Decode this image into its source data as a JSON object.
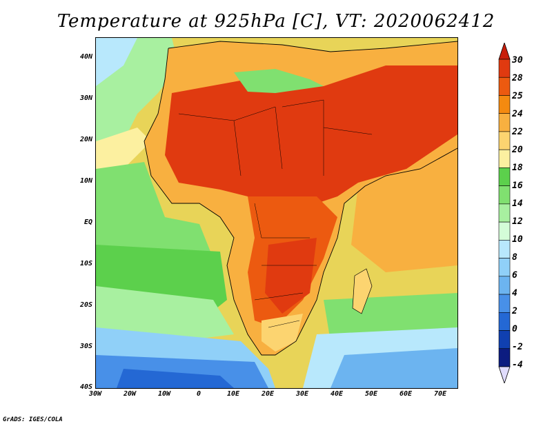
{
  "title": "Temperature at 925hPa [C], VT: 2020062412",
  "footer": "GrADS: IGES/COLA",
  "map": {
    "lat_labels": [
      "40N",
      "30N",
      "20N",
      "10N",
      "EQ",
      "10S",
      "20S",
      "30S",
      "40S"
    ],
    "lon_labels": [
      "30W",
      "20W",
      "10W",
      "0",
      "10E",
      "20E",
      "30E",
      "40E",
      "50E",
      "60E",
      "70E"
    ]
  },
  "colorbar": {
    "labels": [
      "30",
      "28",
      "25",
      "24",
      "22",
      "20",
      "18",
      "16",
      "14",
      "12",
      "10",
      "8",
      "6",
      "4",
      "2",
      "0",
      "-2",
      "-4"
    ],
    "colors": [
      "#e03a10",
      "#ec5a10",
      "#f48a10",
      "#f8b040",
      "#fcd470",
      "#fcf0a0",
      "#5cd04c",
      "#80e070",
      "#a8f0a0",
      "#d4fcd8",
      "#b8e8fc",
      "#90d0f8",
      "#6cb4f0",
      "#4890e8",
      "#2468d4",
      "#1040b0",
      "#0c1c80"
    ],
    "top_arrow_color": "#c81e0a",
    "bottom_arrow_color": "#e0dcfc"
  }
}
